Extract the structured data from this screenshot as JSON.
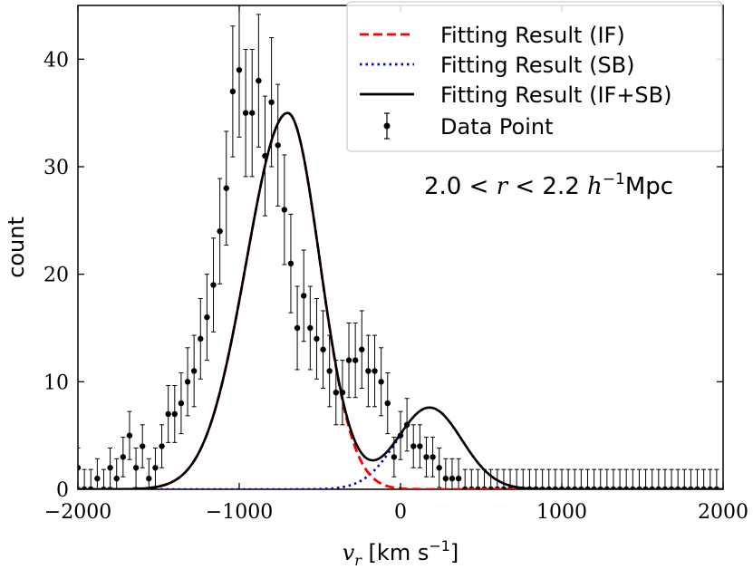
{
  "chart_data": {
    "type": "scatter",
    "title": "",
    "xlabel": "v_r [km s^-1]",
    "ylabel": "count",
    "xlim": [
      -2000,
      2000
    ],
    "ylim": [
      0,
      45
    ],
    "xticks": [
      -2000,
      -1000,
      0,
      1000,
      2000
    ],
    "xtick_labels": [
      "−2000",
      "−1000",
      "0",
      "1000",
      "2000"
    ],
    "yticks": [
      0,
      10,
      20,
      30,
      40
    ],
    "ytick_labels": [
      "0",
      "10",
      "20",
      "30",
      "40"
    ],
    "annotation": "2.0 < r < 2.2 h⁻¹Mpc",
    "legend_position": "top-right",
    "legend": [
      {
        "label": "Fitting Result (IF)",
        "style": "dashed",
        "color": "#ff0000"
      },
      {
        "label": "Fitting Result (SB)",
        "style": "dotted",
        "color": "#0000cc"
      },
      {
        "label": "Fitting Result (IF+SB)",
        "style": "solid",
        "color": "#000000"
      },
      {
        "label": "Data Point",
        "style": "errorbar",
        "color": "#000000"
      }
    ],
    "fit_components": {
      "IF": {
        "amplitude": 35.0,
        "mean": -700,
        "sigma_left": 255,
        "sigma_right": 200
      },
      "SB": {
        "amplitude": 7.6,
        "mean": 180,
        "sigma": 200
      }
    },
    "data_points": {
      "x": [
        -2000,
        -1960,
        -1920,
        -1880,
        -1840,
        -1800,
        -1760,
        -1720,
        -1680,
        -1640,
        -1600,
        -1560,
        -1520,
        -1480,
        -1440,
        -1400,
        -1360,
        -1320,
        -1280,
        -1240,
        -1200,
        -1160,
        -1120,
        -1080,
        -1040,
        -1000,
        -960,
        -920,
        -880,
        -840,
        -800,
        -760,
        -720,
        -680,
        -640,
        -600,
        -560,
        -520,
        -480,
        -440,
        -400,
        -360,
        -320,
        -280,
        -240,
        -200,
        -160,
        -120,
        -80,
        -40,
        0,
        40,
        80,
        120,
        160,
        200,
        240,
        280,
        320,
        360,
        400,
        440,
        480,
        520,
        560,
        600,
        640,
        680,
        720,
        760,
        800,
        840,
        880,
        920,
        960,
        1000,
        1040,
        1080,
        1120,
        1160,
        1200,
        1240,
        1280,
        1320,
        1360,
        1400,
        1440,
        1480,
        1520,
        1560,
        1600,
        1640,
        1680,
        1720,
        1760,
        1800,
        1840,
        1880,
        1920,
        1960
      ],
      "y": [
        2,
        0,
        0,
        1,
        0,
        2,
        1,
        3,
        5,
        2,
        4,
        1,
        2,
        4,
        7,
        7,
        8,
        10,
        11,
        14,
        16,
        19,
        24,
        28,
        37,
        39,
        35,
        35,
        38,
        31,
        36,
        32,
        26,
        21,
        15,
        18,
        15,
        14,
        13,
        11,
        9,
        9,
        12,
        12,
        13,
        11,
        11,
        10,
        8,
        3,
        5,
        6,
        4,
        4,
        3,
        3,
        2,
        1,
        1,
        1,
        0,
        0,
        0,
        0,
        0,
        0,
        0,
        0,
        0,
        0,
        0,
        0,
        0,
        0,
        0,
        0,
        0,
        0,
        0,
        0,
        0,
        0,
        0,
        0,
        0,
        0,
        0,
        0,
        0,
        0,
        0,
        0,
        0,
        0,
        0,
        0,
        0,
        0,
        0,
        0
      ]
    }
  }
}
